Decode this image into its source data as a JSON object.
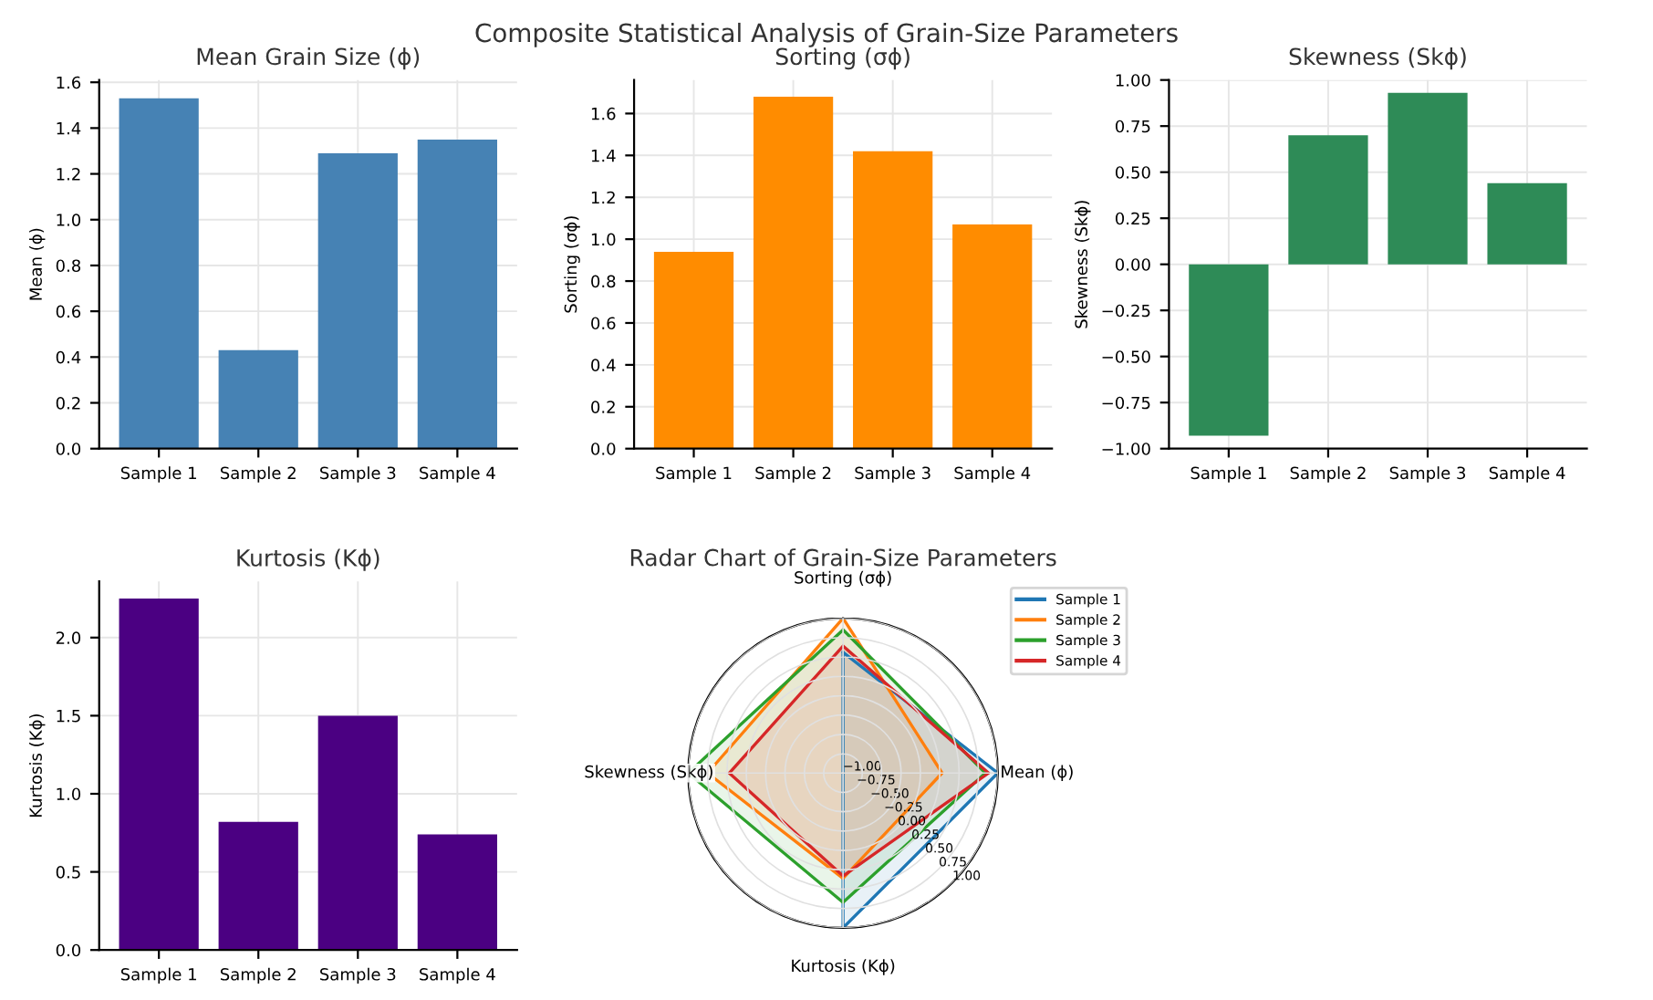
{
  "chart_data": [
    {
      "type": "other",
      "title": "Composite Statistical Analysis of Grain-Size Parameters"
    },
    {
      "type": "bar",
      "title": "Mean Grain Size (ϕ)",
      "ylabel": "Mean (ϕ)",
      "categories": [
        "Sample 1",
        "Sample 2",
        "Sample 3",
        "Sample 4"
      ],
      "values": [
        1.53,
        0.43,
        1.29,
        1.35
      ],
      "color": "#4682b4",
      "ylim": [
        0,
        1.61
      ],
      "yticks": [
        {
          "value": 0,
          "label": "0.0"
        },
        0.2,
        0.4,
        0.6,
        0.8,
        {
          "value": 1,
          "label": "1.0"
        },
        1.2,
        1.4,
        1.6
      ],
      "grid": true
    },
    {
      "type": "bar",
      "title": "Sorting (σϕ)",
      "ylabel": "Sorting (σϕ)",
      "categories": [
        "Sample 1",
        "Sample 2",
        "Sample 3",
        "Sample 4"
      ],
      "values": [
        0.94,
        1.68,
        1.42,
        1.07
      ],
      "color": "#ff8c00",
      "ylim": [
        0,
        1.76
      ],
      "yticks": [
        {
          "value": 0,
          "label": "0.0"
        },
        0.2,
        0.4,
        0.6,
        0.8,
        {
          "value": 1,
          "label": "1.0"
        },
        1.2,
        1.4,
        1.6
      ],
      "grid": true
    },
    {
      "type": "bar",
      "title": "Skewness (Skϕ)",
      "ylabel": "Skewness (Skϕ)",
      "categories": [
        "Sample 1",
        "Sample 2",
        "Sample 3",
        "Sample 4"
      ],
      "values": [
        -0.93,
        0.7,
        0.93,
        0.44
      ],
      "color": "#2e8b57",
      "ylim": [
        -1.0,
        1.0
      ],
      "yticks": [
        {
          "value": -1.0,
          "label": "−1.00"
        },
        {
          "value": -0.75,
          "label": "−0.75"
        },
        {
          "value": -0.5,
          "label": "−0.50"
        },
        {
          "value": -0.25,
          "label": "−0.25"
        },
        {
          "value": 0,
          "label": "0.00"
        },
        {
          "value": 0.25,
          "label": "0.25"
        },
        {
          "value": 0.5,
          "label": "0.50"
        },
        {
          "value": 0.75,
          "label": "0.75"
        },
        {
          "value": 1.0,
          "label": "1.00"
        }
      ],
      "grid": true
    },
    {
      "type": "bar",
      "title": "Kurtosis (Kϕ)",
      "ylabel": "Kurtosis (Kϕ)",
      "categories": [
        "Sample 1",
        "Sample 2",
        "Sample 3",
        "Sample 4"
      ],
      "values": [
        2.25,
        0.82,
        1.5,
        0.74
      ],
      "color": "#4b0082",
      "ylim": [
        0,
        2.36
      ],
      "yticks": [
        {
          "value": 0,
          "label": "0.0"
        },
        0.5,
        {
          "value": 1,
          "label": "1.0"
        },
        1.5,
        {
          "value": 2,
          "label": "2.0"
        }
      ],
      "grid": true
    },
    {
      "type": "radar",
      "title": "Radar Chart of Grain-Size Parameters",
      "categories": [
        "Sorting (σϕ)",
        "Mean (ϕ)",
        "Kurtosis (Kϕ)",
        "Skewness (Skϕ)"
      ],
      "ylim": [
        -1.0,
        1.0
      ],
      "yticks": [
        {
          "value": -1.0,
          "label": "−1.00"
        },
        {
          "value": -0.75,
          "label": "−0.75"
        },
        {
          "value": -0.5,
          "label": "−0.50"
        },
        {
          "value": -0.25,
          "label": "−0.25"
        },
        {
          "value": 0,
          "label": "0.00"
        },
        {
          "value": 0.25,
          "label": "0.25"
        },
        {
          "value": 0.5,
          "label": "0.50"
        },
        {
          "value": 0.75,
          "label": "0.75"
        },
        {
          "value": 1.0,
          "label": "1.00"
        }
      ],
      "grid": true,
      "legend": "top right",
      "series": [
        {
          "name": "Sample 1",
          "color": "#1f77b4",
          "values": [
            0.56,
            1.0,
            1.0,
            -1.0
          ]
        },
        {
          "name": "Sample 2",
          "color": "#ff7f0e",
          "values": [
            1.0,
            0.28,
            0.36,
            0.75
          ]
        },
        {
          "name": "Sample 3",
          "color": "#2ca02c",
          "values": [
            0.85,
            0.84,
            0.67,
            1.0
          ]
        },
        {
          "name": "Sample 4",
          "color": "#d62728",
          "values": [
            0.64,
            0.88,
            0.33,
            0.47
          ]
        }
      ]
    }
  ]
}
